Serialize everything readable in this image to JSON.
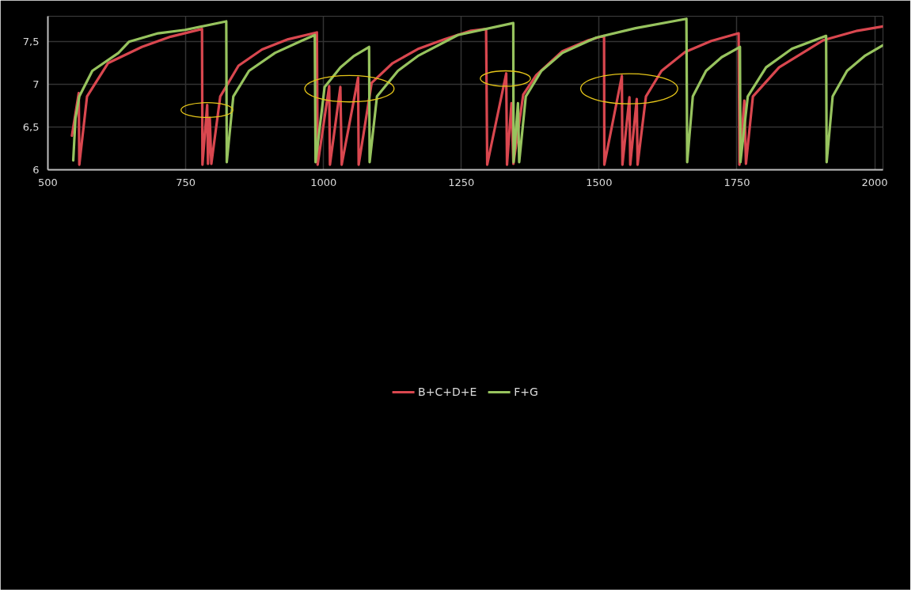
{
  "chart_data": {
    "type": "line",
    "xlim": [
      500,
      2015
    ],
    "ylim": [
      6,
      7.8
    ],
    "xticks": [
      500,
      750,
      1000,
      1250,
      1500,
      1750,
      2000
    ],
    "yticks": [
      6,
      {
        "value": 6.5,
        "label": "6,5"
      },
      7,
      {
        "value": 7.5,
        "label": "7,5"
      }
    ],
    "grid": true,
    "legend": "bottom",
    "marker": "none",
    "line_style": "solid",
    "series": [
      {
        "name": "B+C+D+E",
        "color": "#d9474f",
        "x": [
          543.6,
          556,
          557,
          571,
          609,
          670.6,
          722.7,
          779.6,
          780.4,
          789,
          790.4,
          793.7,
          796.5,
          812.7,
          845.8,
          888.5,
          935.9,
          988,
          989.4,
          1010.3,
          1011.7,
          1030.6,
          1033,
          1062.8,
          1063.8,
          1087.4,
          1125.4,
          1172.7,
          1220,
          1267.5,
          1295,
          1297,
          1331.5,
          1332.9,
          1341,
          1344.5,
          1362.3,
          1386,
          1433.4,
          1480.7,
          1509,
          1509.5,
          1541.3,
          1542.3,
          1555,
          1556.5,
          1568.3,
          1569.8,
          1585,
          1613.3,
          1656,
          1703.4,
          1753.1,
          1754.6,
          1763.5,
          1766.4,
          1779,
          1826.5,
          1907,
          1968.6,
          2015
        ],
        "values": [
          6.4,
          6.9,
          6.06,
          6.86,
          7.25,
          7.44,
          7.56,
          7.65,
          6.06,
          6.76,
          6.07,
          6.61,
          6.07,
          6.86,
          7.22,
          7.41,
          7.53,
          7.61,
          6.06,
          6.98,
          6.06,
          6.97,
          6.06,
          7.08,
          6.06,
          7.02,
          7.25,
          7.42,
          7.53,
          7.63,
          7.65,
          6.06,
          7.13,
          6.06,
          6.78,
          6.07,
          6.88,
          7.11,
          7.39,
          7.52,
          7.57,
          6.06,
          7.1,
          6.06,
          6.85,
          6.06,
          6.83,
          6.06,
          6.86,
          7.16,
          7.38,
          7.51,
          7.6,
          6.06,
          6.81,
          6.07,
          6.86,
          7.2,
          7.52,
          7.63,
          7.68
        ]
      },
      {
        "name": "F+G",
        "color": "#97c35e",
        "x": [
          546,
          550,
          557,
          580.6,
          628,
          647,
          700,
          749,
          823.6,
          824.5,
          836.4,
          864.9,
          912,
          959.5,
          984.2,
          985.6,
          1002,
          1030.6,
          1054.3,
          1082.7,
          1083.7,
          1097,
          1135,
          1172.7,
          1243.8,
          1344.3,
          1344.8,
          1352.8,
          1355,
          1367,
          1395.4,
          1433.4,
          1480.7,
          1495,
          1566,
          1658.4,
          1659.8,
          1670,
          1694,
          1722.3,
          1755.5,
          1756.4,
          1769.7,
          1802.9,
          1850,
          1911.8,
          1912.8,
          1923.7,
          1949.8,
          1983,
          2015
        ],
        "values": [
          6.11,
          6.6,
          6.86,
          7.16,
          7.37,
          7.5,
          7.6,
          7.64,
          7.74,
          6.09,
          6.86,
          7.16,
          7.37,
          7.51,
          7.58,
          6.09,
          6.97,
          7.2,
          7.33,
          7.44,
          6.09,
          6.86,
          7.16,
          7.34,
          7.58,
          7.72,
          6.09,
          6.78,
          6.09,
          6.86,
          7.16,
          7.37,
          7.51,
          7.55,
          7.66,
          7.77,
          6.09,
          6.86,
          7.16,
          7.32,
          7.44,
          6.09,
          6.86,
          7.2,
          7.42,
          7.57,
          6.09,
          6.86,
          7.16,
          7.34,
          7.46
        ]
      }
    ]
  }
}
